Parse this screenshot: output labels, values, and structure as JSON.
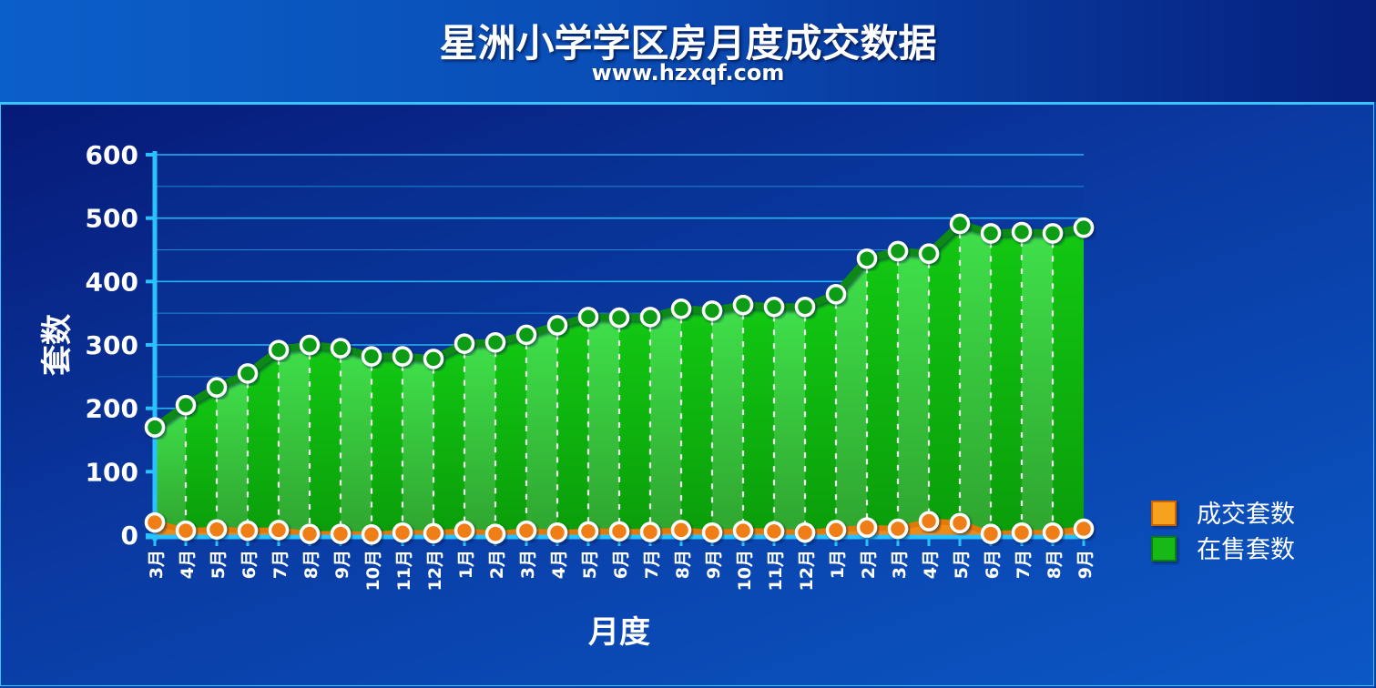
{
  "header": {
    "title": "星洲小学学区房月度成交数据",
    "subtitle": "www.hzxqf.com"
  },
  "colors": {
    "listing": "#19b919",
    "deal": "#f08a16",
    "grid": "#2ec2ff",
    "text": "#ffffff"
  },
  "chart_data": {
    "type": "area",
    "title": "星洲小学学区房月度成交数据",
    "subtitle": "www.hzxqf.com",
    "xlabel": "月度",
    "ylabel": "套数",
    "ylim": [
      0,
      600
    ],
    "yticks": [
      0,
      100,
      200,
      300,
      400,
      500,
      600
    ],
    "grid": true,
    "legend_position": "right",
    "categories": [
      "3月",
      "4月",
      "5月",
      "6月",
      "7月",
      "8月",
      "9月",
      "10月",
      "11月",
      "12月",
      "1月",
      "2月",
      "3月",
      "4月",
      "5月",
      "6月",
      "7月",
      "8月",
      "9月",
      "10月",
      "11月",
      "12月",
      "1月",
      "2月",
      "3月",
      "4月",
      "5月",
      "6月",
      "7月",
      "8月",
      "9月"
    ],
    "series": [
      {
        "name": "成交套数",
        "color": "#f08a16",
        "values": [
          20,
          7,
          9,
          7,
          8,
          2,
          2,
          1,
          4,
          3,
          7,
          2,
          7,
          4,
          6,
          6,
          5,
          8,
          4,
          7,
          6,
          4,
          8,
          12,
          10,
          22,
          19,
          2,
          4,
          4,
          10
        ]
      },
      {
        "name": "在售套数",
        "color": "#19b919",
        "values": [
          170,
          205,
          233,
          255,
          292,
          300,
          295,
          282,
          282,
          278,
          302,
          304,
          316,
          331,
          344,
          343,
          344,
          357,
          354,
          363,
          360,
          360,
          380,
          436,
          448,
          444,
          491,
          476,
          478,
          476,
          485
        ]
      }
    ]
  }
}
